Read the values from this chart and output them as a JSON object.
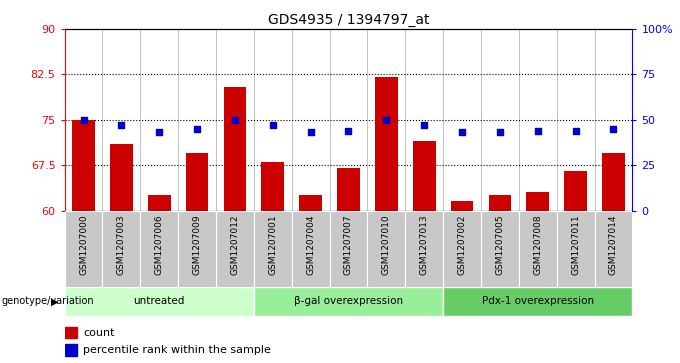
{
  "title": "GDS4935 / 1394797_at",
  "samples": [
    "GSM1207000",
    "GSM1207003",
    "GSM1207006",
    "GSM1207009",
    "GSM1207012",
    "GSM1207001",
    "GSM1207004",
    "GSM1207007",
    "GSM1207010",
    "GSM1207013",
    "GSM1207002",
    "GSM1207005",
    "GSM1207008",
    "GSM1207011",
    "GSM1207014"
  ],
  "bar_heights": [
    75.0,
    71.0,
    62.5,
    69.5,
    80.5,
    68.0,
    62.5,
    67.0,
    82.0,
    71.5,
    61.5,
    62.5,
    63.0,
    66.5,
    69.5
  ],
  "percentile_right": [
    50,
    47,
    43,
    45,
    50,
    47,
    43,
    44,
    50,
    47,
    43,
    43,
    44,
    44,
    45
  ],
  "bar_color": "#cc0000",
  "dot_color": "#0000cc",
  "ylim_left": [
    60,
    90
  ],
  "ylim_right": [
    0,
    100
  ],
  "yticks_left": [
    60,
    67.5,
    75,
    82.5,
    90
  ],
  "ytick_labels_left": [
    "60",
    "67.5",
    "75",
    "82.5",
    "90"
  ],
  "yticks_right": [
    0,
    25,
    50,
    75,
    100
  ],
  "ytick_labels_right": [
    "0",
    "25",
    "50",
    "75",
    "100%"
  ],
  "hlines": [
    67.5,
    75.0,
    82.5
  ],
  "groups": [
    {
      "label": "untreated",
      "start": 0,
      "end": 5,
      "color": "#ccffcc"
    },
    {
      "label": "β-gal overexpression",
      "start": 5,
      "end": 10,
      "color": "#99ee99"
    },
    {
      "label": "Pdx-1 overexpression",
      "start": 10,
      "end": 15,
      "color": "#66cc66"
    }
  ],
  "group_label_prefix": "genotype/variation",
  "legend_count_label": "count",
  "legend_percentile_label": "percentile rank within the sample",
  "background_color": "#ffffff",
  "plot_bg_color": "#ffffff",
  "xticklabel_bg": "#c8c8c8",
  "bar_width": 0.6
}
